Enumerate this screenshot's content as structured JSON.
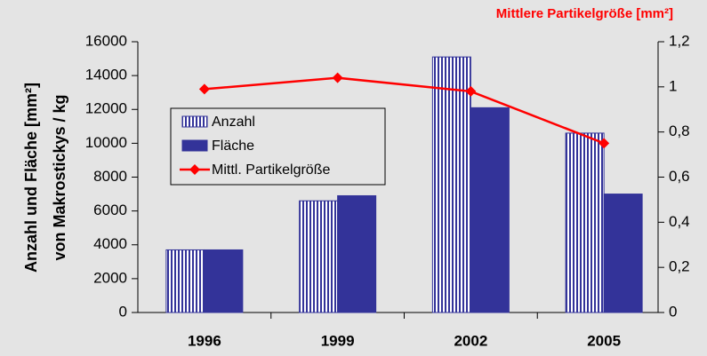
{
  "chart_data": {
    "type": "bar-line",
    "ylabel": [
      "Anzahl und Fläche [mm²]",
      "von Makrostickys / kg"
    ],
    "y2label": "Mittlere Partikelgröße [mm²]",
    "categories": [
      "1996",
      "1999",
      "2002",
      "2005"
    ],
    "series": [
      {
        "name": "Anzahl",
        "type": "bar",
        "color": "#333399",
        "pattern": "vertical-stripes",
        "values": [
          3700,
          6600,
          15100,
          10600
        ]
      },
      {
        "name": "Fläche",
        "type": "bar",
        "color": "#333399",
        "values": [
          3700,
          6900,
          12100,
          7000
        ]
      },
      {
        "name": "Mittl. Partikelgröße",
        "type": "line",
        "axis": "y2",
        "color": "#ff0000",
        "marker": "diamond",
        "values": [
          0.99,
          1.04,
          0.98,
          0.75
        ]
      }
    ],
    "ylim": [
      0,
      16000
    ],
    "yticks": [
      0,
      2000,
      4000,
      6000,
      8000,
      10000,
      12000,
      14000,
      16000
    ],
    "y2lim": [
      0,
      1.2
    ],
    "y2ticks": [
      0,
      {
        "value": 0.2,
        "label": "0,2"
      },
      {
        "value": 0.4,
        "label": "0,4"
      },
      {
        "value": 0.6,
        "label": "0,6"
      },
      {
        "value": 0.8,
        "label": "0,8"
      },
      1,
      {
        "value": 1.2,
        "label": "1,2"
      }
    ],
    "grid": false
  }
}
